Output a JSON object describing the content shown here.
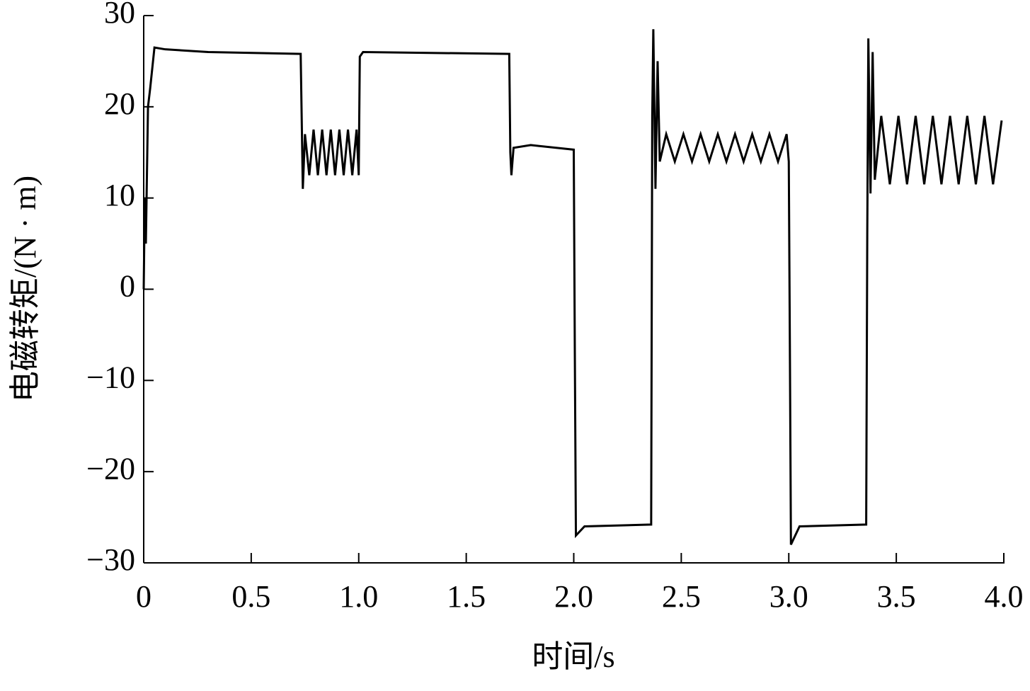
{
  "chart_data": {
    "type": "line",
    "x_label": "时间/s",
    "y_label": "电磁转矩/(N · m)",
    "xlim": [
      0,
      4
    ],
    "ylim": [
      -30,
      30
    ],
    "xticks": [
      0,
      0.5,
      {
        "value": 1,
        "label": "1.0"
      },
      1.5,
      {
        "value": 2,
        "label": "2.0"
      },
      2.5,
      {
        "value": 3,
        "label": "3.0"
      },
      3.5,
      {
        "value": 4,
        "label": "4.0"
      }
    ],
    "yticks": [
      {
        "value": -30,
        "label": "−30"
      },
      {
        "value": -20,
        "label": "−20"
      },
      {
        "value": -10,
        "label": "−10"
      },
      0,
      10,
      20,
      30
    ],
    "series": [
      {
        "color": "#000000",
        "x": [
          0,
          0.005,
          0.01,
          0.02,
          0.03,
          0.05,
          0.1,
          0.3,
          0.73,
          0.74,
          0.75,
          0.77,
          0.79,
          0.81,
          0.83,
          0.85,
          0.87,
          0.89,
          0.91,
          0.93,
          0.95,
          0.97,
          0.99,
          1.0,
          1.005,
          1.02,
          1.7,
          1.705,
          1.71,
          1.72,
          1.8,
          2.0,
          2.005,
          2.01,
          2.05,
          2.36,
          2.365,
          2.37,
          2.38,
          2.39,
          2.4,
          2.43,
          2.47,
          2.51,
          2.55,
          2.59,
          2.63,
          2.67,
          2.71,
          2.75,
          2.79,
          2.83,
          2.87,
          2.91,
          2.95,
          2.99,
          3.0,
          3.005,
          3.01,
          3.05,
          3.36,
          3.365,
          3.37,
          3.38,
          3.39,
          3.4,
          3.43,
          3.47,
          3.51,
          3.55,
          3.59,
          3.63,
          3.67,
          3.71,
          3.75,
          3.79,
          3.83,
          3.87,
          3.91,
          3.95,
          3.99
        ],
        "values": [
          0,
          10,
          5,
          20,
          22,
          26.5,
          26.3,
          26,
          25.8,
          11,
          17,
          12.5,
          17.5,
          12.5,
          17.5,
          12.5,
          17.5,
          12.5,
          17.5,
          12.5,
          17.5,
          12.5,
          17.5,
          12.5,
          25.5,
          26,
          25.8,
          15,
          12.5,
          15.5,
          15.8,
          15.3,
          -7,
          -27,
          -26,
          -25.8,
          19,
          28.5,
          11,
          25,
          14,
          17,
          14,
          17,
          14,
          17,
          14,
          17,
          14,
          17,
          14,
          17,
          14,
          17,
          14,
          17,
          14,
          -6,
          -28,
          -26,
          -25.8,
          6,
          27.5,
          10.5,
          26,
          12,
          19,
          11.5,
          19,
          11.5,
          19,
          11.5,
          19,
          11.5,
          19,
          11.5,
          19,
          11.5,
          19,
          11.5,
          18.5
        ]
      }
    ]
  }
}
